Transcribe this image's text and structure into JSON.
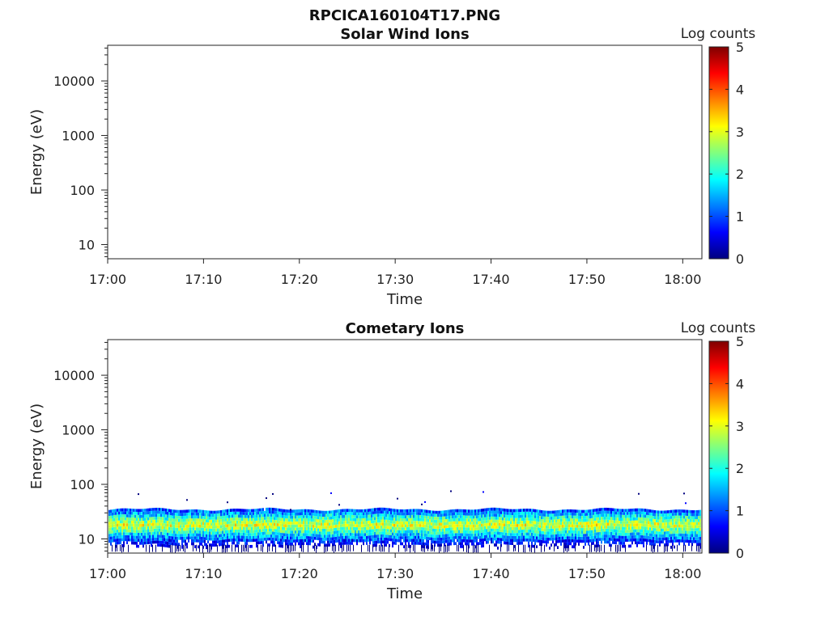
{
  "figure_title": "RPCICA160104T17.PNG",
  "chart_data": [
    {
      "type": "heatmap",
      "title": "Solar Wind Ions",
      "xlabel": "Time",
      "ylabel": "Energy (eV)",
      "x_ticks": [
        "17:00",
        "17:10",
        "17:20",
        "17:30",
        "17:40",
        "17:50",
        "18:00"
      ],
      "x_range": [
        "17:00",
        "18:02"
      ],
      "y_scale": "log",
      "y_ticks": [
        "10",
        "100",
        "1000",
        "10000"
      ],
      "y_range": [
        5.5,
        45000
      ],
      "colorbar": {
        "label": "Log counts",
        "range": [
          0,
          5
        ],
        "ticks": [
          "0",
          "1",
          "2",
          "3",
          "4",
          "5"
        ],
        "colormap": "jet"
      },
      "band": null
    },
    {
      "type": "heatmap",
      "title": "Cometary Ions",
      "xlabel": "Time",
      "ylabel": "Energy (eV)",
      "x_ticks": [
        "17:00",
        "17:10",
        "17:20",
        "17:30",
        "17:40",
        "17:50",
        "18:00"
      ],
      "x_range": [
        "17:00",
        "18:02"
      ],
      "y_scale": "log",
      "y_ticks": [
        "10",
        "100",
        "1000",
        "10000"
      ],
      "y_range": [
        5.5,
        45000
      ],
      "colorbar": {
        "label": "Log counts",
        "range": [
          0,
          5
        ],
        "ticks": [
          "0",
          "1",
          "2",
          "3",
          "4",
          "5"
        ],
        "colormap": "jet"
      },
      "band": {
        "energy_min_eV": 6,
        "energy_max_eV": 35,
        "peak_energy_eV": 18,
        "peak_log_counts": 3.0,
        "sparse_max_eV": 80
      }
    }
  ]
}
